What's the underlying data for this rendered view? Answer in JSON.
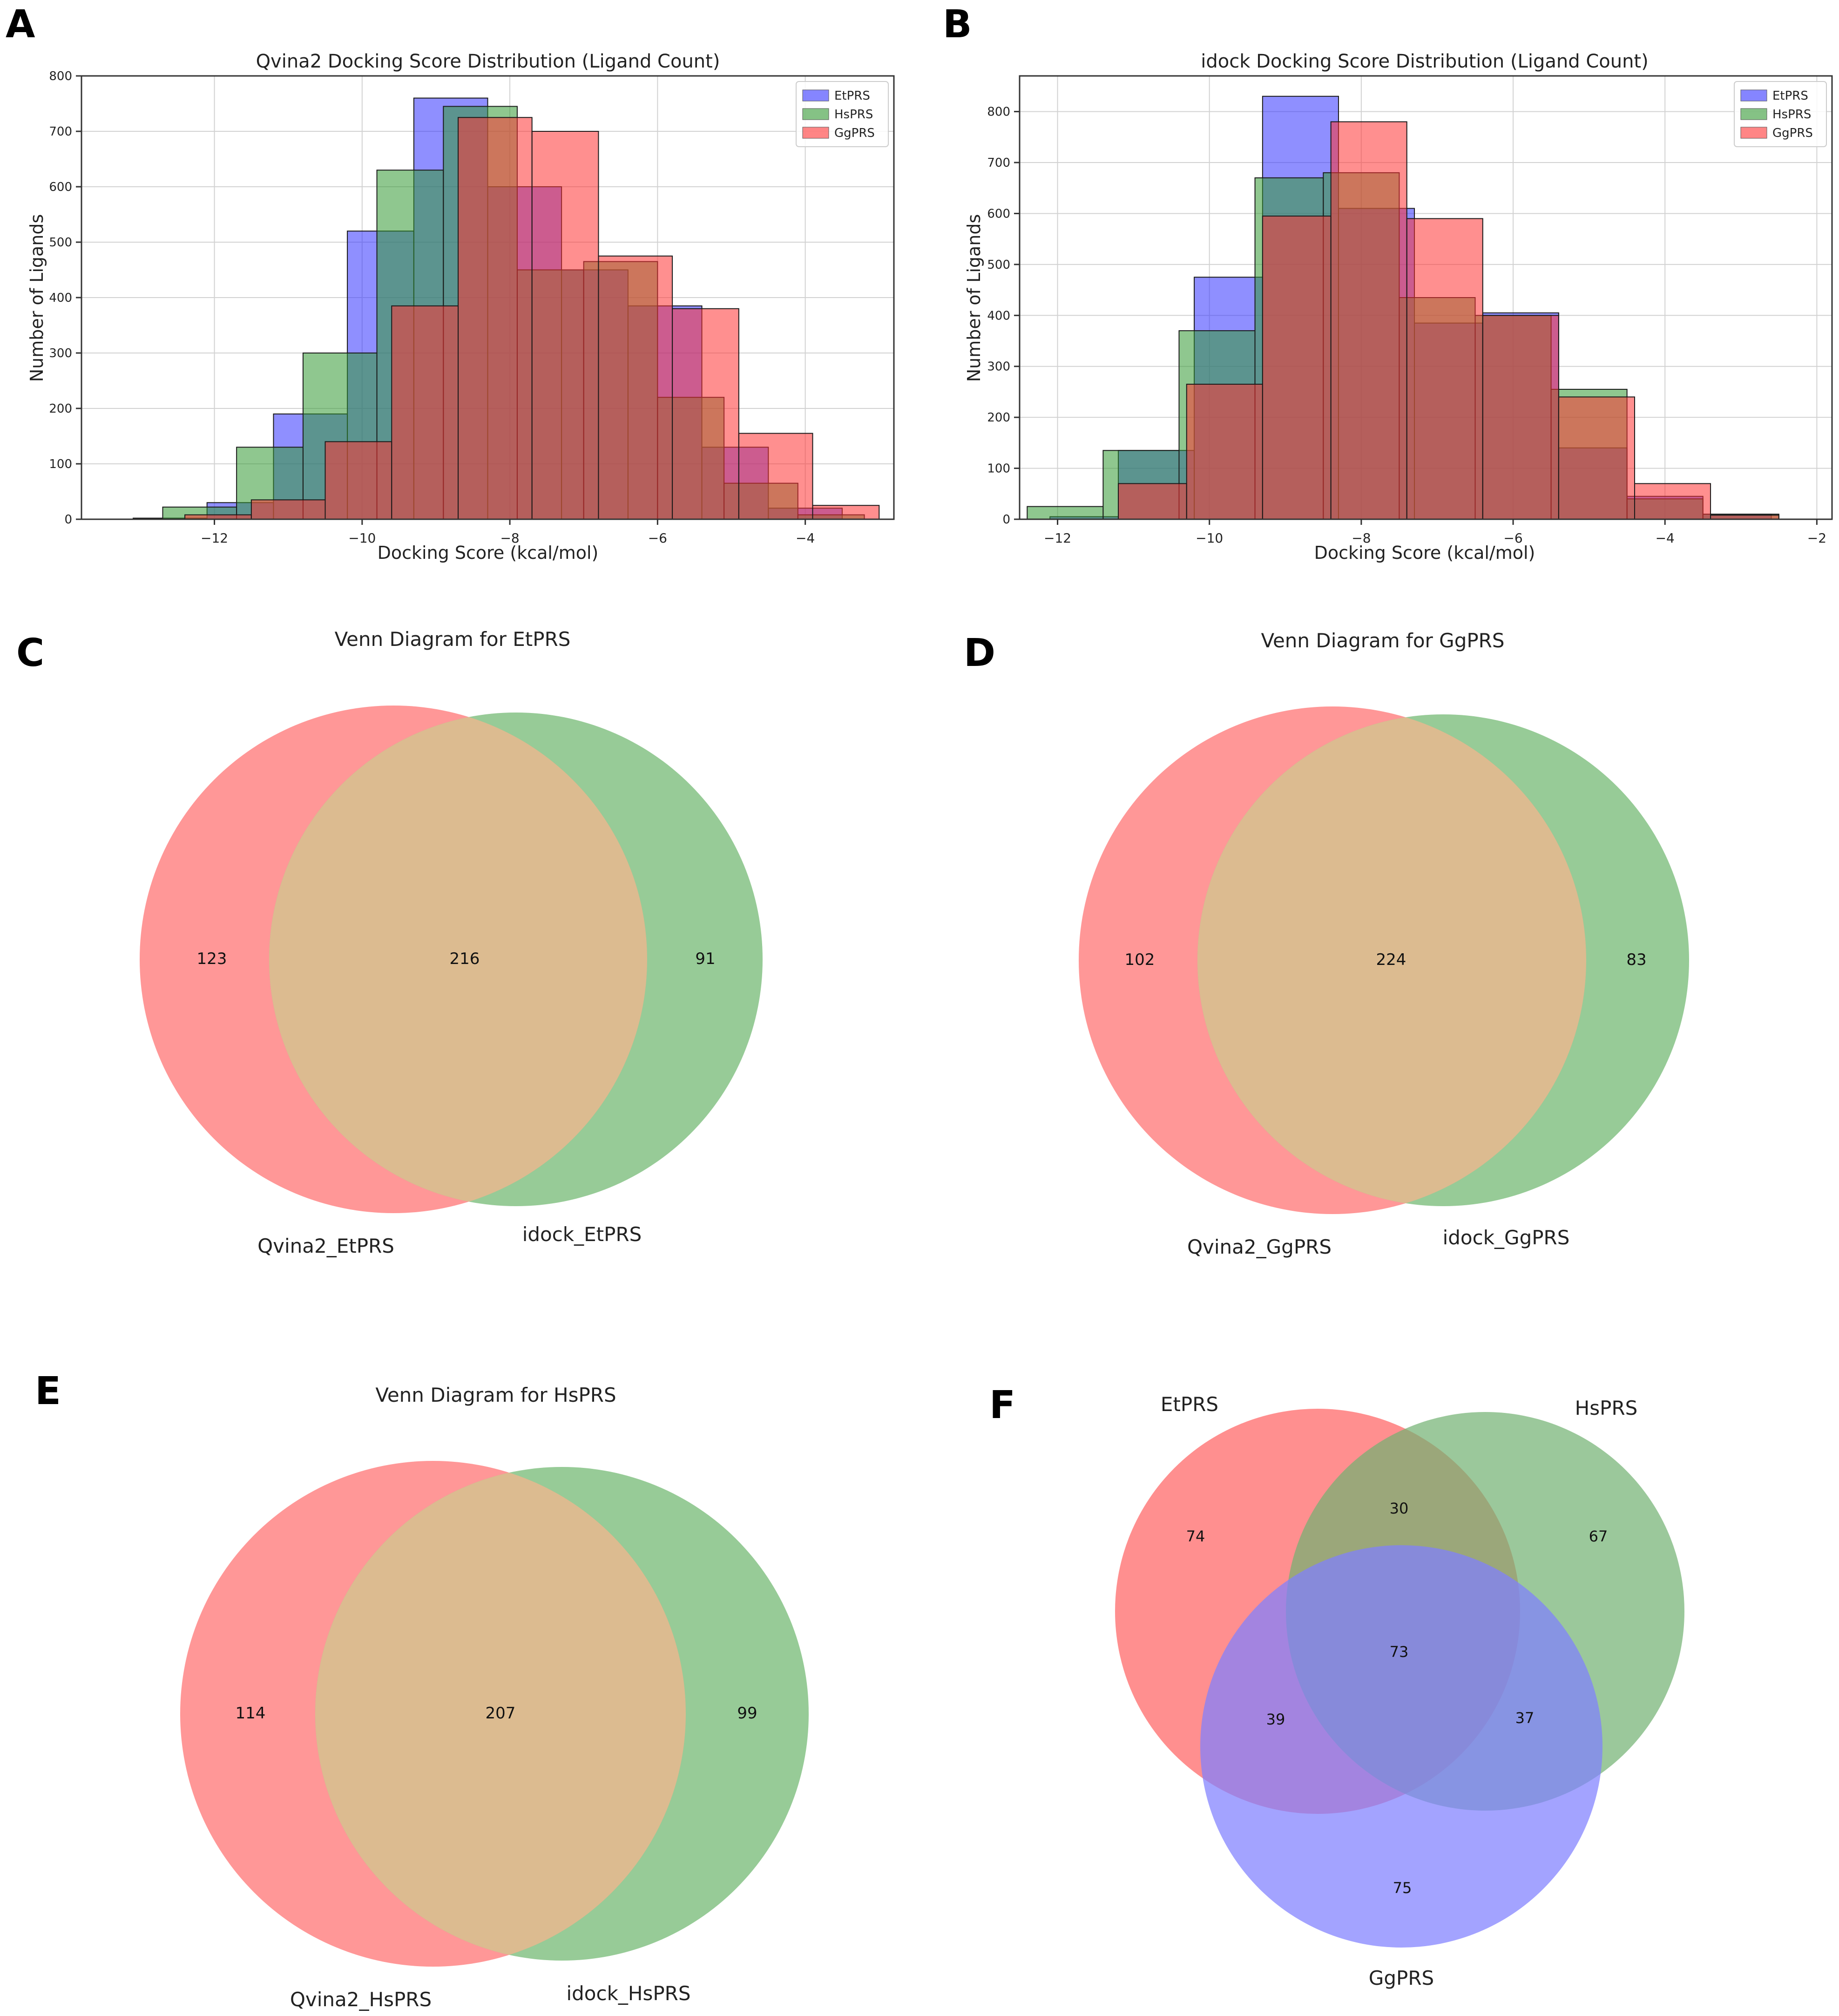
{
  "panels": {
    "A": "A",
    "B": "B",
    "C": "C",
    "D": "D",
    "E": "E",
    "F": "F"
  },
  "chart_data": [
    {
      "id": "A",
      "type": "bar",
      "title": "Qvina2 Docking Score Distribution (Ligand Count)",
      "xlabel": "Docking Score (kcal/mol)",
      "ylabel": "Number of Ligands",
      "xlim": [
        -13.8,
        -2.8
      ],
      "ylim": [
        0,
        800
      ],
      "xticks": [
        -12,
        -10,
        -8,
        -6,
        -4
      ],
      "xtick_labels": [
        "−12",
        "−10",
        "−8",
        "−6",
        "−4"
      ],
      "yticks": [
        0,
        100,
        200,
        300,
        400,
        500,
        600,
        700,
        800
      ],
      "grid": true,
      "legend_position": "top-right",
      "series": [
        {
          "name": "EtPRS",
          "color": "#3333ff",
          "bins": [
            [
              -13.1,
              -12.1,
              2
            ],
            [
              -12.1,
              -11.2,
              30
            ],
            [
              -11.2,
              -10.2,
              190
            ],
            [
              -10.2,
              -9.3,
              520
            ],
            [
              -9.3,
              -8.3,
              760
            ],
            [
              -8.3,
              -7.3,
              600
            ],
            [
              -7.3,
              -6.4,
              450
            ],
            [
              -6.4,
              -5.4,
              385
            ],
            [
              -5.4,
              -4.5,
              130
            ],
            [
              -4.5,
              -3.5,
              20
            ]
          ]
        },
        {
          "name": "HsPRS",
          "color": "#339933",
          "bins": [
            [
              -12.7,
              -11.7,
              22
            ],
            [
              -11.7,
              -10.8,
              130
            ],
            [
              -10.8,
              -9.8,
              300
            ],
            [
              -9.8,
              -8.9,
              630
            ],
            [
              -8.9,
              -7.9,
              745
            ],
            [
              -7.9,
              -7.0,
              450
            ],
            [
              -7.0,
              -6.0,
              465
            ],
            [
              -6.0,
              -5.1,
              220
            ],
            [
              -5.1,
              -4.1,
              65
            ],
            [
              -4.1,
              -3.2,
              8
            ]
          ]
        },
        {
          "name": "GgPRS",
          "color": "#ff3333",
          "bins": [
            [
              -12.4,
              -11.5,
              8
            ],
            [
              -11.5,
              -10.5,
              35
            ],
            [
              -10.5,
              -9.6,
              140
            ],
            [
              -9.6,
              -8.7,
              385
            ],
            [
              -8.7,
              -7.7,
              725
            ],
            [
              -7.7,
              -6.8,
              700
            ],
            [
              -6.8,
              -5.8,
              475
            ],
            [
              -5.8,
              -4.9,
              380
            ],
            [
              -4.9,
              -3.9,
              155
            ],
            [
              -3.9,
              -3.0,
              25
            ]
          ]
        }
      ]
    },
    {
      "id": "B",
      "type": "bar",
      "title": "idock Docking Score Distribution (Ligand Count)",
      "xlabel": "Docking Score (kcal/mol)",
      "ylabel": "Number of Ligands",
      "xlim": [
        -12.5,
        -1.8
      ],
      "ylim": [
        0,
        870
      ],
      "xticks": [
        -12,
        -10,
        -8,
        -6,
        -4,
        -2
      ],
      "xtick_labels": [
        "−12",
        "−10",
        "−8",
        "−6",
        "−4",
        "−2"
      ],
      "yticks": [
        0,
        100,
        200,
        300,
        400,
        500,
        600,
        700,
        800
      ],
      "grid": true,
      "legend_position": "top-right",
      "series": [
        {
          "name": "EtPRS",
          "color": "#3333ff",
          "bins": [
            [
              -12.1,
              -11.2,
              5
            ],
            [
              -11.2,
              -10.2,
              135
            ],
            [
              -10.2,
              -9.3,
              475
            ],
            [
              -9.3,
              -8.3,
              830
            ],
            [
              -8.3,
              -7.3,
              610
            ],
            [
              -7.3,
              -6.4,
              385
            ],
            [
              -6.4,
              -5.4,
              405
            ],
            [
              -5.4,
              -4.5,
              140
            ],
            [
              -4.5,
              -3.5,
              45
            ],
            [
              -3.5,
              -2.6,
              10
            ]
          ]
        },
        {
          "name": "HsPRS",
          "color": "#339933",
          "bins": [
            [
              -12.4,
              -11.4,
              25
            ],
            [
              -11.4,
              -10.4,
              135
            ],
            [
              -10.4,
              -9.4,
              370
            ],
            [
              -9.4,
              -8.5,
              670
            ],
            [
              -8.5,
              -7.5,
              680
            ],
            [
              -7.5,
              -6.5,
              435
            ],
            [
              -6.5,
              -5.5,
              400
            ],
            [
              -5.5,
              -4.5,
              255
            ],
            [
              -4.5,
              -3.5,
              40
            ],
            [
              -3.5,
              -2.5,
              10
            ]
          ]
        },
        {
          "name": "GgPRS",
          "color": "#ff3333",
          "bins": [
            [
              -11.2,
              -10.3,
              70
            ],
            [
              -10.3,
              -9.3,
              265
            ],
            [
              -9.3,
              -8.4,
              595
            ],
            [
              -8.4,
              -7.4,
              780
            ],
            [
              -7.4,
              -6.4,
              590
            ],
            [
              -6.4,
              -5.4,
              400
            ],
            [
              -5.4,
              -4.4,
              240
            ],
            [
              -4.4,
              -3.4,
              70
            ],
            [
              -3.4,
              -2.5,
              8
            ]
          ]
        }
      ]
    },
    {
      "id": "C",
      "type": "venn2",
      "title": "Venn Diagram for EtPRS",
      "sets": [
        {
          "label": "Qvina2_EtPRS",
          "color": "#ff8080"
        },
        {
          "label": "idock_EtPRS",
          "color": "#80c080"
        }
      ],
      "values": {
        "left_only": "123",
        "both": "216",
        "right_only": "91"
      }
    },
    {
      "id": "D",
      "type": "venn2",
      "title": "Venn Diagram for GgPRS",
      "sets": [
        {
          "label": "Qvina2_GgPRS",
          "color": "#ff8080"
        },
        {
          "label": "idock_GgPRS",
          "color": "#80c080"
        }
      ],
      "values": {
        "left_only": "102",
        "both": "224",
        "right_only": "83"
      }
    },
    {
      "id": "E",
      "type": "venn2",
      "title": "Venn Diagram for HsPRS",
      "sets": [
        {
          "label": "Qvina2_HsPRS",
          "color": "#ff8080"
        },
        {
          "label": "idock_HsPRS",
          "color": "#80c080"
        }
      ],
      "values": {
        "left_only": "114",
        "both": "207",
        "right_only": "99"
      }
    },
    {
      "id": "F",
      "type": "venn3",
      "sets": [
        {
          "label": "EtPRS",
          "color": "#ff7070"
        },
        {
          "label": "HsPRS",
          "color": "#70b070"
        },
        {
          "label": "GgPRS",
          "color": "#8080ff"
        }
      ],
      "values": {
        "et_only": "74",
        "hs_only": "67",
        "gg_only": "75",
        "et_hs": "30",
        "et_gg": "39",
        "hs_gg": "37",
        "all": "73"
      }
    }
  ]
}
